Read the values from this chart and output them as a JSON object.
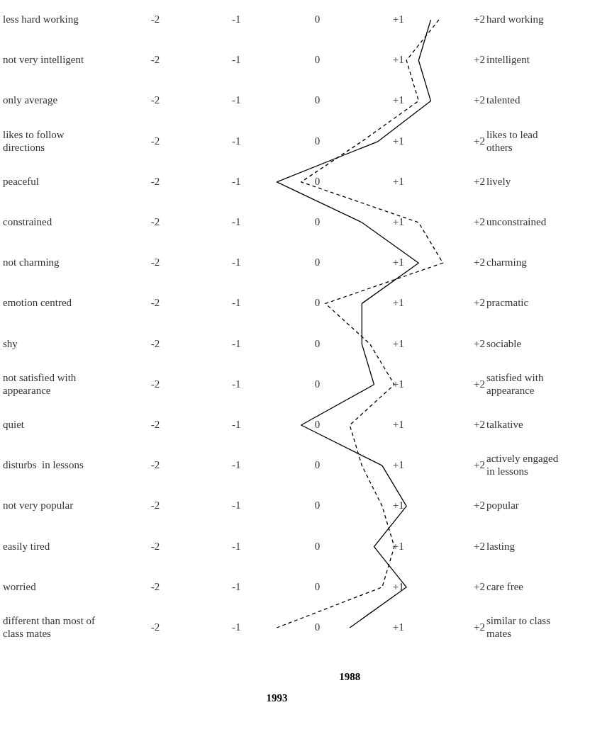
{
  "chart_data": {
    "type": "line",
    "orientation": "horizontal",
    "marker": "none",
    "categories": [
      "less hard working",
      "not very intelligent",
      "only average",
      " likes to follow directions",
      "peaceful",
      "constrained",
      "not charming",
      " emotion centred",
      "shy",
      "not satisfied with appearance",
      "quiet",
      "disturbs  in lessons",
      "not very popular",
      "easily tired",
      "worried",
      "different than most of class mates"
    ],
    "y2_categories": [
      "hard working",
      "intelligent",
      "talented",
      "likes to lead others",
      "lively",
      "unconstrained",
      "charming",
      "pracmatic",
      "sociable",
      "satisfied with appearance",
      "talkative",
      "actively engaged in lessons",
      "popular",
      "lasting",
      "care free",
      "similar to class mates"
    ],
    "xlim": [
      -2,
      2
    ],
    "xticks": [
      {
        "value": -2,
        "label": "-2"
      },
      {
        "value": -1,
        "label": "-1"
      },
      {
        "value": 0,
        "label": "0"
      },
      {
        "value": 1,
        "label": "+1"
      },
      {
        "value": 2,
        "label": "+2"
      }
    ],
    "series": [
      {
        "name": "1988",
        "color": "#000000",
        "line_style": "solid",
        "values": [
          1.4,
          1.25,
          1.4,
          0.75,
          -0.5,
          0.55,
          1.25,
          0.55,
          0.55,
          0.7,
          -0.2,
          0.8,
          1.1,
          0.7,
          1.1,
          0.4
        ]
      },
      {
        "name": "1993",
        "color": "#000000",
        "line_style": "dashed",
        "values": [
          1.5,
          1.1,
          1.25,
          0.55,
          -0.2,
          1.25,
          1.55,
          0.1,
          0.65,
          0.95,
          0.4,
          0.55,
          0.8,
          0.95,
          0.8,
          -0.5
        ]
      }
    ]
  }
}
